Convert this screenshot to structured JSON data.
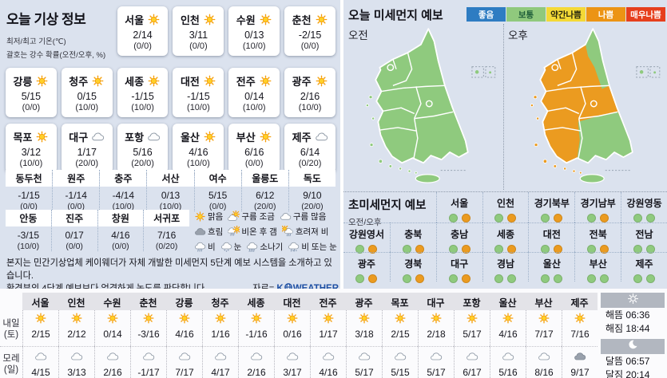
{
  "today": {
    "title": "오늘 기상 정보",
    "note1": "최저/최고 기온(℃)",
    "note2": "괄호는 강수 확률(오전/오후, %)",
    "cards": [
      {
        "name": "서울",
        "icon": "sun",
        "temp": "2/14",
        "prob": "(0/0)"
      },
      {
        "name": "인천",
        "icon": "sun",
        "temp": "3/11",
        "prob": "(0/0)"
      },
      {
        "name": "수원",
        "icon": "sun",
        "temp": "0/13",
        "prob": "(10/0)"
      },
      {
        "name": "춘천",
        "icon": "sun",
        "temp": "-2/15",
        "prob": "(0/0)"
      },
      {
        "name": "강릉",
        "icon": "sun",
        "temp": "5/15",
        "prob": "(0/0)"
      },
      {
        "name": "청주",
        "icon": "sun",
        "temp": "0/15",
        "prob": "(10/0)"
      },
      {
        "name": "세종",
        "icon": "sun",
        "temp": "-1/15",
        "prob": "(10/0)"
      },
      {
        "name": "대전",
        "icon": "sun",
        "temp": "-1/15",
        "prob": "(10/0)"
      },
      {
        "name": "전주",
        "icon": "sun",
        "temp": "0/14",
        "prob": "(10/0)"
      },
      {
        "name": "광주",
        "icon": "sun",
        "temp": "2/16",
        "prob": "(10/0)"
      },
      {
        "name": "목포",
        "icon": "sun",
        "temp": "3/12",
        "prob": "(10/0)"
      },
      {
        "name": "대구",
        "icon": "cloud",
        "temp": "1/17",
        "prob": "(20/0)"
      },
      {
        "name": "포항",
        "icon": "cloud",
        "temp": "5/16",
        "prob": "(20/0)"
      },
      {
        "name": "울산",
        "icon": "sun",
        "temp": "4/16",
        "prob": "(10/0)"
      },
      {
        "name": "부산",
        "icon": "sun",
        "temp": "6/16",
        "prob": "(0/0)"
      },
      {
        "name": "제주",
        "icon": "cloud",
        "temp": "6/14",
        "prob": "(0/20)"
      }
    ],
    "mini_rows": [
      [
        {
          "name": "동두천",
          "temp": "-1/15",
          "prob": "(0/0)"
        },
        {
          "name": "원주",
          "temp": "-1/14",
          "prob": "(0/0)"
        },
        {
          "name": "충주",
          "temp": "-4/14",
          "prob": "(10/0)"
        },
        {
          "name": "서산",
          "temp": "0/13",
          "prob": "(10/0)"
        },
        {
          "name": "여수",
          "temp": "5/15",
          "prob": "(0/0)"
        },
        {
          "name": "울릉도",
          "temp": "6/12",
          "prob": "(20/0)"
        },
        {
          "name": "독도",
          "temp": "9/10",
          "prob": "(20/0)"
        }
      ],
      [
        {
          "name": "안동",
          "temp": "-3/15",
          "prob": "(10/0)"
        },
        {
          "name": "진주",
          "temp": "0/17",
          "prob": "(0/0)"
        },
        {
          "name": "창원",
          "temp": "4/16",
          "prob": "(0/0)"
        },
        {
          "name": "서귀포",
          "temp": "7/16",
          "prob": "(0/20)"
        }
      ]
    ]
  },
  "weather_legend": {
    "rows": [
      [
        {
          "icon": "sun",
          "label": "맑음"
        },
        {
          "icon": "cloud-sun",
          "label": "구름 조금"
        },
        {
          "icon": "cloud",
          "label": "구름 많음"
        }
      ],
      [
        {
          "icon": "cloud-dark",
          "label": "흐림"
        },
        {
          "icon": "rain-sun",
          "label": "비온 후 갬"
        },
        {
          "icon": "sun-rain",
          "label": "흐려져 비"
        }
      ],
      [
        {
          "icon": "rain",
          "label": "비"
        },
        {
          "icon": "snow",
          "label": "눈"
        },
        {
          "icon": "shower",
          "label": "소나기"
        },
        {
          "icon": "rain-snow",
          "label": "비 또는 눈"
        }
      ]
    ]
  },
  "footer": {
    "line1": "본지는 민간기상업체 케이웨더가 자체 개발한 미세먼지 5단계 예보 시스템을 소개하고 있습니다.",
    "line2": "환경부의 4단계 예보보다 엄격하게 농도를 판단합니다.",
    "source_prefix": "자료=",
    "brand_k": "K",
    "brand_rest": "WEATHER",
    "brand_color": "#1d4fa3"
  },
  "dust": {
    "title": "오늘 미세먼지 예보",
    "levels": [
      {
        "label": "좋음",
        "bg": "#2e7cc2",
        "fg": "#ffffff"
      },
      {
        "label": "보통",
        "bg": "#90c97d",
        "fg": "#1c5b38"
      },
      {
        "label": "약간나쁨",
        "bg": "#f4d936",
        "fg": "#26260f"
      },
      {
        "label": "나쁨",
        "bg": "#ec9414",
        "fg": "#ffffff"
      },
      {
        "label": "매우나쁨",
        "bg": "#e63f1d",
        "fg": "#ffffff"
      }
    ],
    "map_colors": {
      "normal": "#8fca7e",
      "bad": "#eb9b20"
    },
    "maps": [
      {
        "label": "오전",
        "mode": "am"
      },
      {
        "label": "오후",
        "mode": "pm"
      }
    ]
  },
  "ultrafine": {
    "title": "초미세먼지 예보",
    "subtitle": "오전/오후",
    "level_colors": {
      "보통": "#8fca7e",
      "나쁨": "#eb9b20"
    },
    "rows": [
      [
        {
          "name": "서울",
          "am": "보통",
          "pm": "나쁨"
        },
        {
          "name": "인천",
          "am": "보통",
          "pm": "나쁨"
        },
        {
          "name": "경기북부",
          "am": "보통",
          "pm": "나쁨"
        },
        {
          "name": "경기남부",
          "am": "보통",
          "pm": "나쁨"
        },
        {
          "name": "강원영동",
          "am": "보통",
          "pm": "보통"
        }
      ],
      [
        {
          "name": "강원영서",
          "am": "보통",
          "pm": "나쁨"
        },
        {
          "name": "충북",
          "am": "보통",
          "pm": "나쁨"
        },
        {
          "name": "충남",
          "am": "보통",
          "pm": "나쁨"
        },
        {
          "name": "세종",
          "am": "보통",
          "pm": "나쁨"
        },
        {
          "name": "대전",
          "am": "보통",
          "pm": "나쁨"
        },
        {
          "name": "전북",
          "am": "보통",
          "pm": "나쁨"
        },
        {
          "name": "전남",
          "am": "보통",
          "pm": "보통"
        }
      ],
      [
        {
          "name": "광주",
          "am": "보통",
          "pm": "나쁨"
        },
        {
          "name": "경북",
          "am": "보통",
          "pm": "나쁨"
        },
        {
          "name": "대구",
          "am": "보통",
          "pm": "나쁨"
        },
        {
          "name": "경남",
          "am": "보통",
          "pm": "보통"
        },
        {
          "name": "울산",
          "am": "보통",
          "pm": "보통"
        },
        {
          "name": "부산",
          "am": "보통",
          "pm": "보통"
        },
        {
          "name": "제주",
          "am": "보통",
          "pm": "보통"
        }
      ]
    ]
  },
  "daily": {
    "row_labels": [
      [
        "내일",
        "(토)"
      ],
      [
        "모레",
        "(일)"
      ]
    ],
    "cities": [
      "서울",
      "인천",
      "수원",
      "춘천",
      "강릉",
      "청주",
      "세종",
      "대전",
      "전주",
      "광주",
      "목포",
      "대구",
      "포항",
      "울산",
      "부산",
      "제주"
    ],
    "tomorrow": [
      {
        "icon": "sun",
        "temp": "2/15"
      },
      {
        "icon": "sun",
        "temp": "2/12"
      },
      {
        "icon": "sun",
        "temp": "0/14"
      },
      {
        "icon": "sun",
        "temp": "-3/16"
      },
      {
        "icon": "sun",
        "temp": "4/16"
      },
      {
        "icon": "sun",
        "temp": "1/16"
      },
      {
        "icon": "sun",
        "temp": "-1/16"
      },
      {
        "icon": "sun",
        "temp": "0/16"
      },
      {
        "icon": "sun",
        "temp": "1/17"
      },
      {
        "icon": "sun",
        "temp": "3/18"
      },
      {
        "icon": "sun",
        "temp": "2/15"
      },
      {
        "icon": "sun",
        "temp": "2/18"
      },
      {
        "icon": "sun",
        "temp": "5/17"
      },
      {
        "icon": "sun",
        "temp": "4/16"
      },
      {
        "icon": "sun",
        "temp": "7/17"
      },
      {
        "icon": "sun",
        "temp": "7/16"
      }
    ],
    "day_after": [
      {
        "icon": "cloud",
        "temp": "4/15"
      },
      {
        "icon": "cloud",
        "temp": "3/13"
      },
      {
        "icon": "cloud",
        "temp": "2/16"
      },
      {
        "icon": "cloud",
        "temp": "-1/17"
      },
      {
        "icon": "cloud",
        "temp": "7/17"
      },
      {
        "icon": "cloud",
        "temp": "4/17"
      },
      {
        "icon": "cloud",
        "temp": "2/16"
      },
      {
        "icon": "cloud",
        "temp": "3/17"
      },
      {
        "icon": "cloud",
        "temp": "4/16"
      },
      {
        "icon": "cloud",
        "temp": "5/17"
      },
      {
        "icon": "cloud",
        "temp": "5/15"
      },
      {
        "icon": "cloud",
        "temp": "5/17"
      },
      {
        "icon": "cloud",
        "temp": "6/17"
      },
      {
        "icon": "cloud",
        "temp": "5/16"
      },
      {
        "icon": "cloud",
        "temp": "8/16"
      },
      {
        "icon": "cloud-dark",
        "temp": "9/17"
      }
    ]
  },
  "sun_moon": {
    "sunrise": "해뜸 06:36",
    "sunset": "해짐 18:44",
    "moonrise": "달뜸 06:57",
    "moonset": "달짐 20:14"
  }
}
